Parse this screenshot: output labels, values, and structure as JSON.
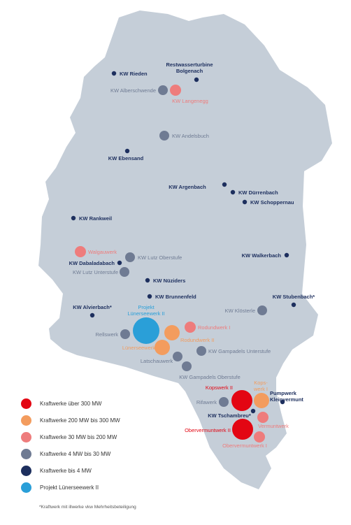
{
  "colors": {
    "land": "#c5ced8",
    "over300": "#e30613",
    "mw200to300": "#f39c5e",
    "mw30to200": "#ee7c7c",
    "mw4to30": "#6f7b93",
    "upto4": "#1d2f5e",
    "project": "#2a9fd8"
  },
  "plants": [
    {
      "id": "rieden",
      "label": "KW Rieden",
      "category": "upto4"
    },
    {
      "id": "bolgenach",
      "label": "Restwasserturbine Bolgenach",
      "line1": "Restwasserturbine",
      "line2": "Bolgenach",
      "category": "upto4"
    },
    {
      "id": "alberschwende",
      "label": "KW Alberschwende",
      "category": "mw4to30"
    },
    {
      "id": "langenegg",
      "label": "KW Langenegg",
      "category": "mw30to200"
    },
    {
      "id": "andelsbuch",
      "label": "KW Andelsbuch",
      "category": "mw4to30"
    },
    {
      "id": "ebensand",
      "label": "KW Ebensand",
      "category": "upto4"
    },
    {
      "id": "argenbach",
      "label": "KW Argenbach",
      "category": "upto4"
    },
    {
      "id": "duerrenbach",
      "label": "KW Dürrenbach",
      "category": "upto4"
    },
    {
      "id": "schoppernau",
      "label": "KW Schoppernau",
      "category": "upto4"
    },
    {
      "id": "rankweil",
      "label": "KW Rankweil",
      "category": "upto4"
    },
    {
      "id": "walgauwerk",
      "label": "Walgauwerk",
      "category": "mw30to200"
    },
    {
      "id": "lutz-oberstufe",
      "label": "KW Lutz Oberstufe",
      "category": "mw4to30"
    },
    {
      "id": "dabaladabach",
      "label": "KW Dabaladabach",
      "category": "upto4"
    },
    {
      "id": "lutz-unterstufe",
      "label": "KW Lutz Unterstufe",
      "category": "mw4to30"
    },
    {
      "id": "walkerbach",
      "label": "KW Walkerbach",
      "category": "upto4"
    },
    {
      "id": "nueziders",
      "label": "KW Nüziders",
      "category": "upto4"
    },
    {
      "id": "brunnenfeld",
      "label": "KW Brunnenfeld",
      "category": "upto4"
    },
    {
      "id": "stubenbach",
      "label": "KW Stubenbach*",
      "category": "upto4"
    },
    {
      "id": "alvierbach",
      "label": "KW Alvierbach*",
      "category": "upto4"
    },
    {
      "id": "luenersee-ii",
      "label": "Projekt Lünerseewerk II",
      "line1": "Projekt",
      "line2": "Lünerseewerk II",
      "category": "project"
    },
    {
      "id": "kloesterle",
      "label": "KW Klösterle",
      "category": "mw4to30"
    },
    {
      "id": "rodundwerk-i",
      "label": "Rodundwerk I",
      "category": "mw30to200"
    },
    {
      "id": "rellswerk",
      "label": "Rellswerk",
      "category": "mw4to30"
    },
    {
      "id": "rodundwerk-ii",
      "label": "Rodundwerk II",
      "category": "mw200to300"
    },
    {
      "id": "luenerseewerk",
      "label": "Lünerseewerk",
      "category": "mw200to300"
    },
    {
      "id": "gampadels-unterstufe",
      "label": "KW Gampadels Unterstufe",
      "category": "mw4to30"
    },
    {
      "id": "latschauwerk",
      "label": "Latschauwerk",
      "category": "mw4to30"
    },
    {
      "id": "gampadels-oberstufe",
      "label": "KW Gampadels Oberstufe",
      "category": "mw4to30"
    },
    {
      "id": "kopswerk-ii",
      "label": "Kopswerk II",
      "category": "over300"
    },
    {
      "id": "kopswerk-i",
      "label": "Kops- werk I",
      "line1": "Kops-",
      "line2": "werk I",
      "category": "mw200to300"
    },
    {
      "id": "pumpwerk-kleinvermunt",
      "label": "Pumpwerk Kleinvermunt",
      "line1": "Pumpwerk",
      "line2": "Kleinvermunt",
      "category": "upto4"
    },
    {
      "id": "rifawerk",
      "label": "Rifawerk",
      "category": "mw4to30"
    },
    {
      "id": "tschambreu",
      "label": "KW Tschambreu*",
      "category": "upto4"
    },
    {
      "id": "vermuntwerk",
      "label": "Vermuntwerk",
      "category": "mw30to200"
    },
    {
      "id": "obervermuntwerk-ii",
      "label": "Obervermuntwerk II",
      "category": "over300"
    },
    {
      "id": "obervermuntwerk-i",
      "label": "Obervermuntwerk I",
      "category": "mw30to200"
    }
  ],
  "legend": [
    {
      "label": "Kraftwerke über 300 MW",
      "category": "over300"
    },
    {
      "label": "Kraftwerke 200 MW bis 300 MW",
      "category": "mw200to300"
    },
    {
      "label": "Kraftwerke 30 MW bis 200 MW",
      "category": "mw30to200"
    },
    {
      "label": "Kraftwerke 4 MW bis 30 MW",
      "category": "mw4to30"
    },
    {
      "label": "Kraftwerke bis 4 MW",
      "category": "upto4"
    },
    {
      "label": "Projekt Lünerseewerk II",
      "category": "project"
    }
  ],
  "footnote": "*Kraftwerk mit illwerke vkw Mehrheitsbeteiligung"
}
